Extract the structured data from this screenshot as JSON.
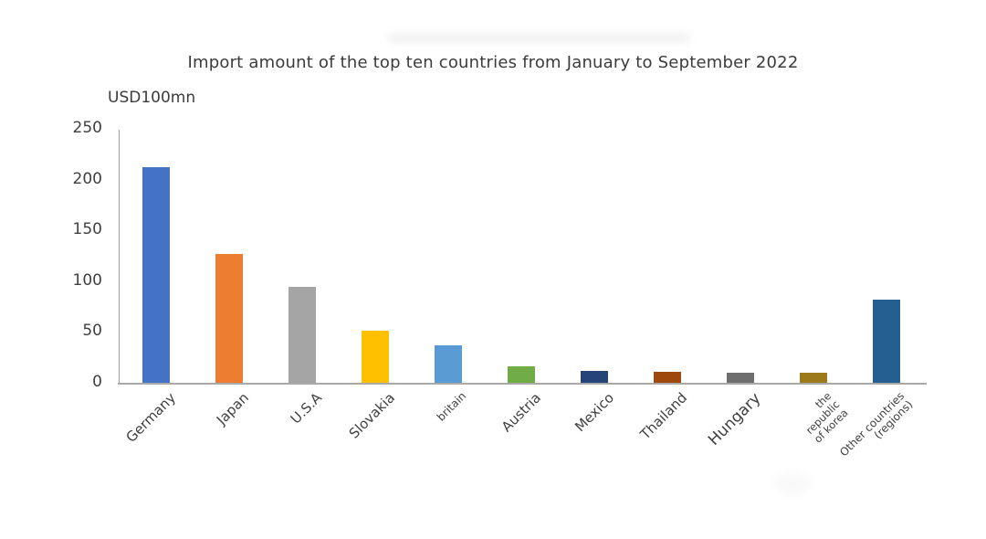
{
  "chart_data": {
    "type": "bar",
    "title": "Import amount of the top ten countries from January to September 2022",
    "unit_label": "USD100mn",
    "xlabel": "",
    "ylabel": "USD100mn",
    "ylim": [
      0,
      250
    ],
    "yticks": [
      0,
      50,
      100,
      150,
      200,
      250
    ],
    "grid": false,
    "legend": "none",
    "categories": [
      "Germany",
      "Japan",
      "U.S.A",
      "Slovakia",
      "britain",
      "Austria",
      "Mexico",
      "Thailand",
      "Hungary",
      "the republic of korea",
      "Other countries (regions)"
    ],
    "values": [
      213,
      128,
      95,
      52,
      38,
      17,
      13,
      12,
      11,
      11,
      83
    ],
    "colors": [
      "#4472C4",
      "#ED7D31",
      "#A5A5A5",
      "#FFC000",
      "#5B9BD5",
      "#70AD47",
      "#264478",
      "#9E480E",
      "#6E6E6E",
      "#9C7A1C",
      "#255E91"
    ],
    "label_lines": [
      [
        "Germany"
      ],
      [
        "Japan"
      ],
      [
        "U.S.A"
      ],
      [
        "Slovakia"
      ],
      [
        "britain"
      ],
      [
        "Austria"
      ],
      [
        "Mexico"
      ],
      [
        "Thailand"
      ],
      [
        "Hungary"
      ],
      [
        "the",
        "republic",
        "of korea"
      ],
      [
        "Other countries",
        "(regions)"
      ]
    ],
    "label_sizes": [
      "lg",
      "lg",
      "lg",
      "lg",
      "sm",
      "lg",
      "lg",
      "lg",
      "xl",
      "xs",
      "sm"
    ],
    "axis_color": "#9f9f9f",
    "text_color": "#3f3f3f"
  }
}
